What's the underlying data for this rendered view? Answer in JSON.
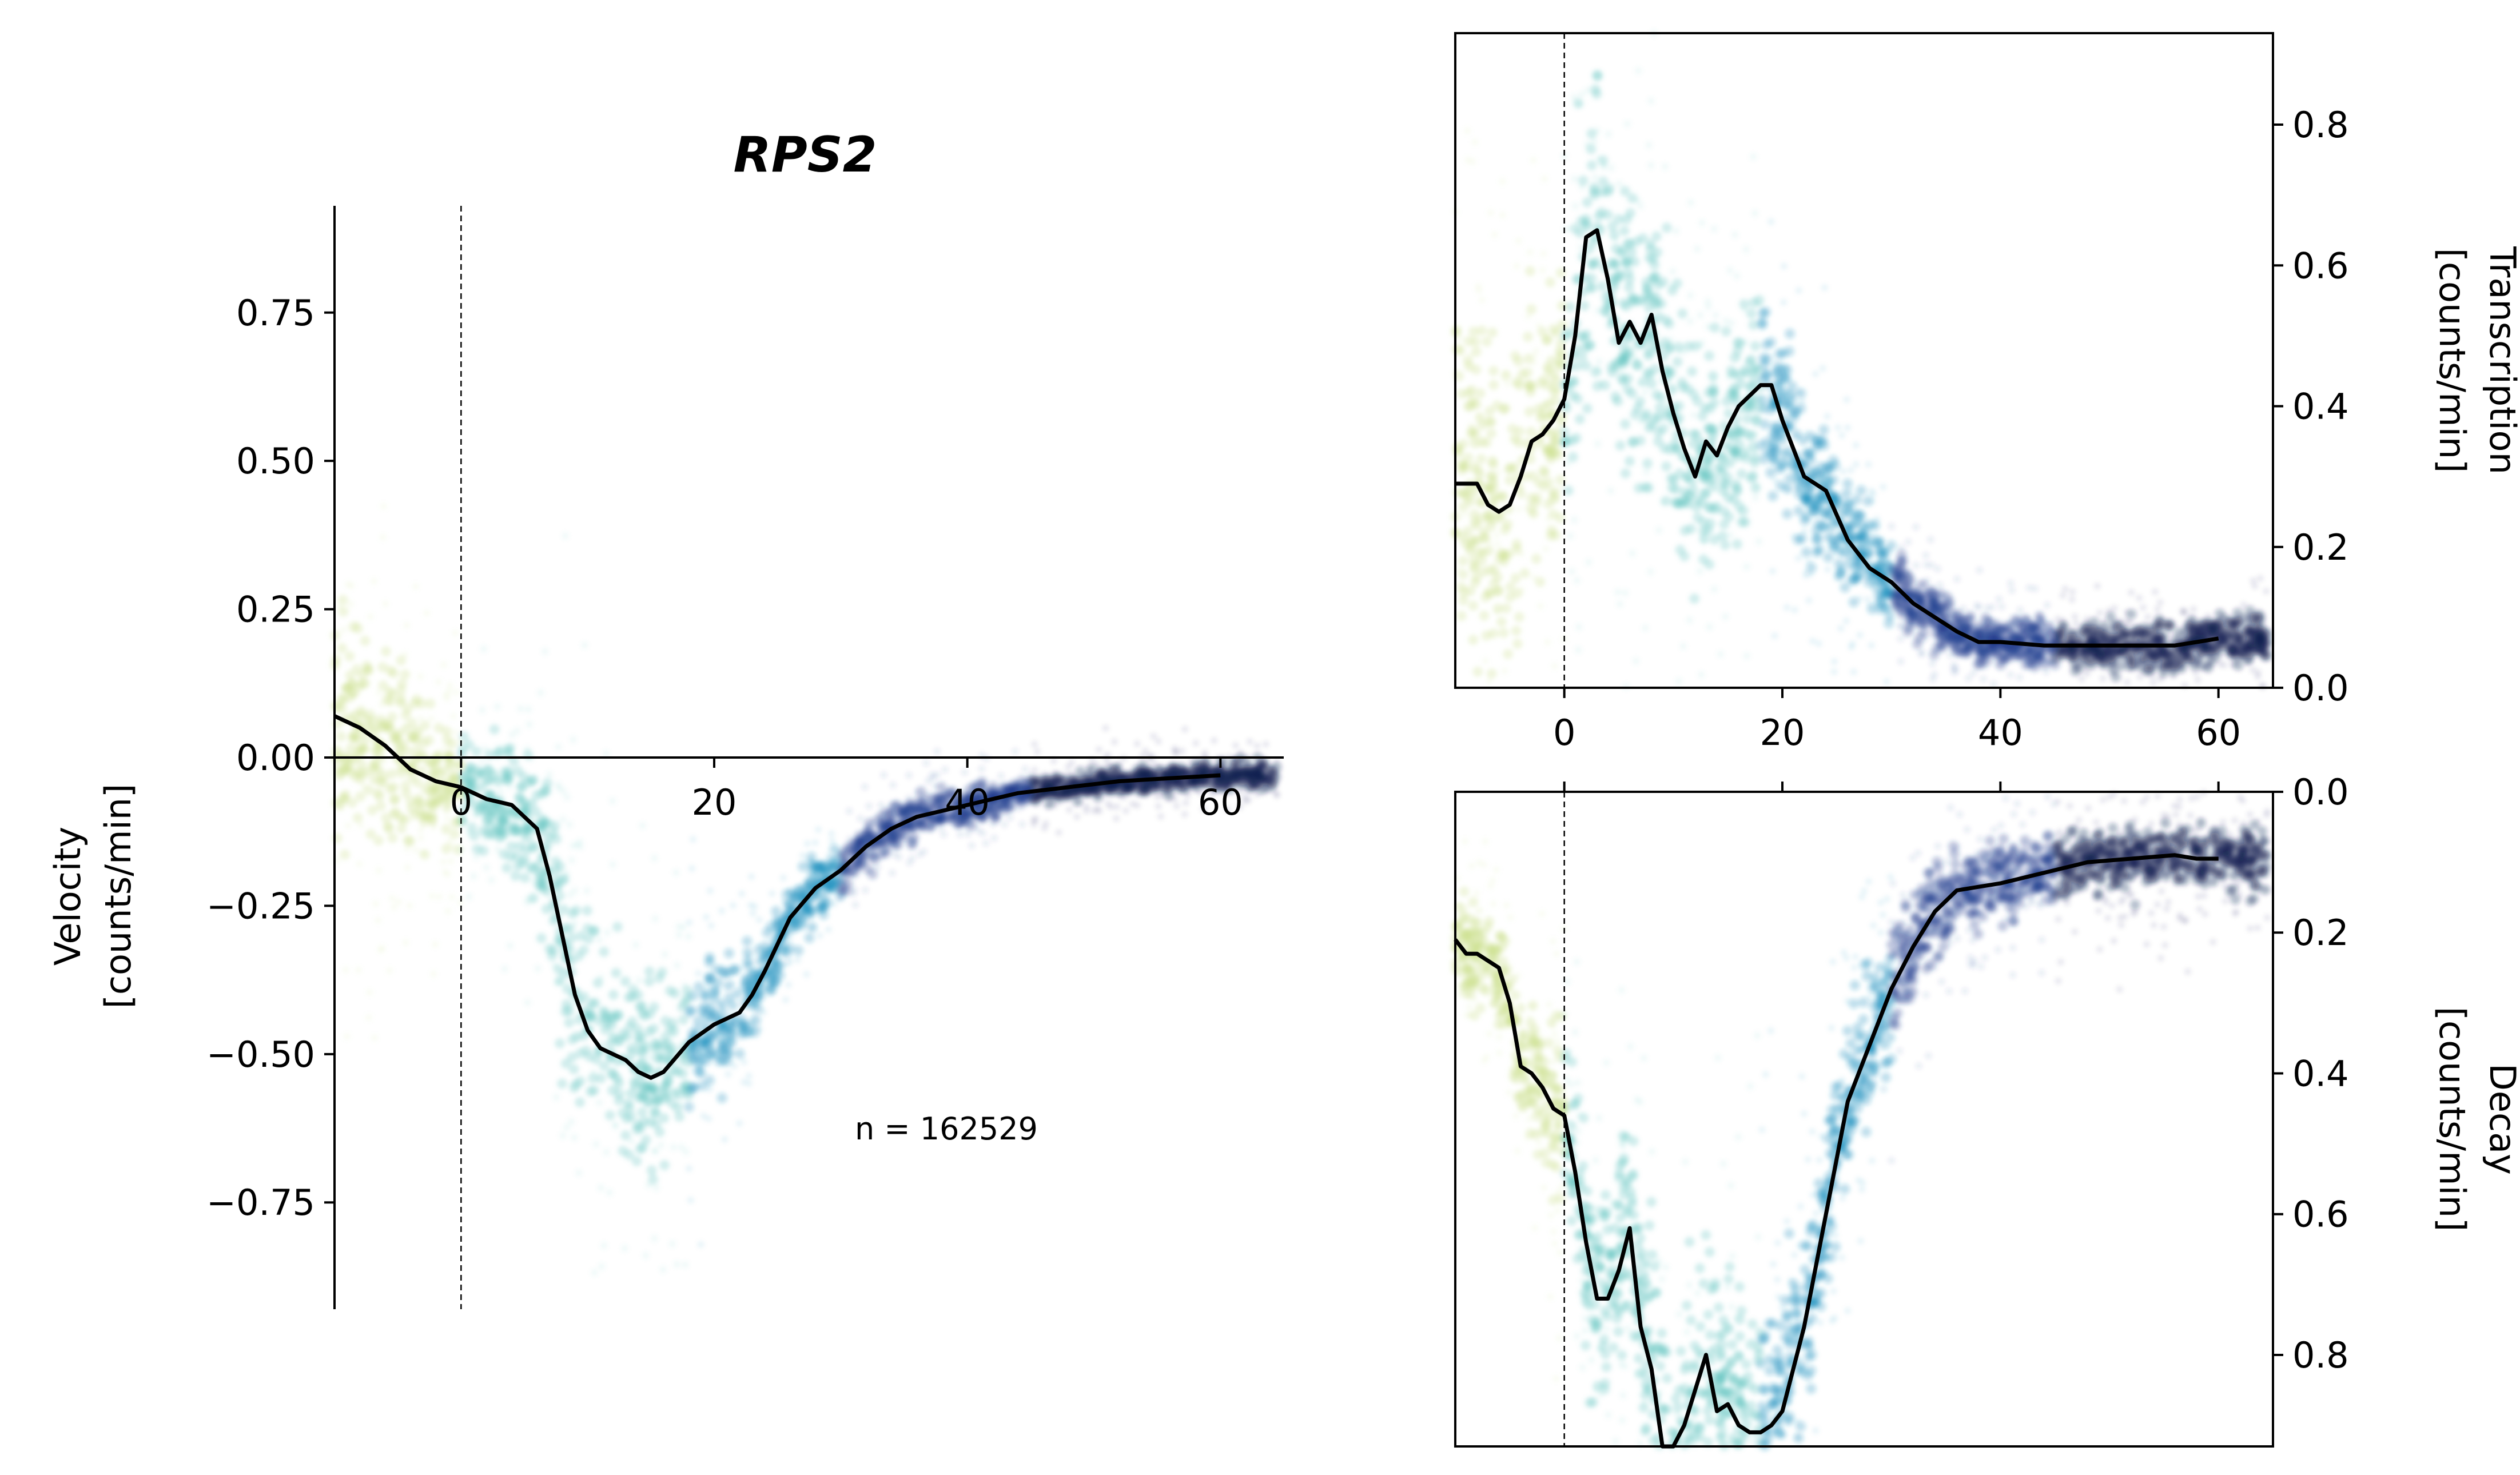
{
  "title": "RPS2",
  "annotation": "n = 162529",
  "colors": {
    "line": "#000000",
    "early": "#c8e08a",
    "mid": "#5cc3c0",
    "late1": "#1e8fc0",
    "late2": "#1b3a8c",
    "end": "#0d1b4f"
  },
  "chart_data": [
    {
      "id": "velocity",
      "type": "scatter",
      "ylabel": [
        "Velocity",
        "[counts/min]"
      ],
      "xlim": [
        -10,
        65
      ],
      "ylim": [
        -0.93,
        0.93
      ],
      "xticks": [
        0,
        20,
        40,
        60
      ],
      "xtick_labels": [
        "0",
        "20",
        "40",
        "60"
      ],
      "yticks": [
        -0.75,
        -0.5,
        -0.25,
        0.0,
        0.25,
        0.5,
        0.75
      ],
      "ytick_labels": [
        "−0.75",
        "−0.50",
        "−0.25",
        "0.00",
        "0.25",
        "0.50",
        "0.75"
      ],
      "vline_x": 0,
      "zero_line": true,
      "line": {
        "x": [
          -10,
          -8,
          -6,
          -4,
          -2,
          0,
          2,
          4,
          6,
          7,
          8,
          9,
          10,
          11,
          12,
          13,
          14,
          15,
          16,
          18,
          20,
          22,
          23,
          24,
          26,
          28,
          30,
          32,
          34,
          36,
          38,
          40,
          44,
          48,
          52,
          56,
          60
        ],
        "y": [
          0.07,
          0.05,
          0.02,
          -0.02,
          -0.04,
          -0.05,
          -0.07,
          -0.08,
          -0.12,
          -0.2,
          -0.3,
          -0.4,
          -0.46,
          -0.49,
          -0.5,
          -0.51,
          -0.53,
          -0.54,
          -0.53,
          -0.48,
          -0.45,
          -0.43,
          -0.4,
          -0.36,
          -0.27,
          -0.22,
          -0.19,
          -0.15,
          -0.12,
          -0.1,
          -0.09,
          -0.08,
          -0.06,
          -0.05,
          -0.04,
          -0.035,
          -0.03
        ]
      },
      "scatter_spread": [
        0.16,
        0.16,
        0.15,
        0.12,
        0.1,
        0.08,
        0.09,
        0.1,
        0.12,
        0.15,
        0.17,
        0.18,
        0.18,
        0.17,
        0.16,
        0.16,
        0.15,
        0.14,
        0.13,
        0.1,
        0.09,
        0.08,
        0.07,
        0.06,
        0.05,
        0.05,
        0.04,
        0.04,
        0.03,
        0.03,
        0.03,
        0.03,
        0.02,
        0.02,
        0.02,
        0.02,
        0.02
      ]
    },
    {
      "id": "transcription",
      "type": "scatter",
      "ylabel": [
        "Transcription",
        "[counts/min]"
      ],
      "xlim": [
        -10,
        65
      ],
      "ylim": [
        0.0,
        0.93
      ],
      "xticks": [
        0,
        20,
        40,
        60
      ],
      "xtick_labels": [
        "0",
        "20",
        "40",
        "60"
      ],
      "yticks": [
        0.0,
        0.2,
        0.4,
        0.6,
        0.8
      ],
      "ytick_labels": [
        "0.0",
        "0.2",
        "0.4",
        "0.6",
        "0.8"
      ],
      "vline_x": 0,
      "line": {
        "x": [
          -10,
          -8,
          -7,
          -6,
          -5,
          -4,
          -3,
          -2,
          -1,
          0,
          1,
          2,
          3,
          4,
          5,
          6,
          7,
          8,
          9,
          10,
          11,
          12,
          13,
          14,
          15,
          16,
          18,
          19,
          20,
          22,
          24,
          26,
          28,
          30,
          32,
          34,
          36,
          38,
          40,
          44,
          48,
          52,
          56,
          58,
          60
        ],
        "y": [
          0.29,
          0.29,
          0.26,
          0.25,
          0.26,
          0.3,
          0.35,
          0.36,
          0.38,
          0.41,
          0.5,
          0.64,
          0.65,
          0.58,
          0.49,
          0.52,
          0.49,
          0.53,
          0.45,
          0.39,
          0.34,
          0.3,
          0.35,
          0.33,
          0.37,
          0.4,
          0.43,
          0.43,
          0.38,
          0.3,
          0.28,
          0.21,
          0.17,
          0.15,
          0.12,
          0.1,
          0.08,
          0.065,
          0.065,
          0.06,
          0.06,
          0.06,
          0.06,
          0.065,
          0.07
        ]
      },
      "scatter_spread": [
        0.2,
        0.2,
        0.2,
        0.2,
        0.2,
        0.19,
        0.18,
        0.17,
        0.16,
        0.16,
        0.18,
        0.2,
        0.2,
        0.19,
        0.18,
        0.18,
        0.18,
        0.18,
        0.17,
        0.16,
        0.15,
        0.14,
        0.14,
        0.14,
        0.13,
        0.13,
        0.12,
        0.11,
        0.1,
        0.09,
        0.08,
        0.07,
        0.06,
        0.05,
        0.04,
        0.035,
        0.03,
        0.03,
        0.03,
        0.03,
        0.03,
        0.03,
        0.03,
        0.03,
        0.03
      ]
    },
    {
      "id": "decay",
      "type": "scatter",
      "ylabel": [
        "Decay",
        "[counts/min]"
      ],
      "xlim": [
        -10,
        65
      ],
      "ylim": [
        0.0,
        0.93
      ],
      "inverted_y": true,
      "xticks": [
        0,
        20,
        40,
        60
      ],
      "xtick_labels": [],
      "yticks": [
        0.0,
        0.2,
        0.4,
        0.6,
        0.8
      ],
      "ytick_labels": [
        "0.0",
        "0.2",
        "0.4",
        "0.6",
        "0.8"
      ],
      "vline_x": 0,
      "line": {
        "x": [
          -10,
          -9,
          -8,
          -6,
          -5,
          -4,
          -3,
          -2,
          -1,
          0,
          1,
          2,
          3,
          4,
          5,
          6,
          7,
          8,
          9,
          10,
          11,
          12,
          13,
          14,
          15,
          16,
          17,
          18,
          19,
          20,
          22,
          24,
          26,
          28,
          30,
          32,
          34,
          36,
          38,
          40,
          44,
          48,
          52,
          56,
          58,
          60
        ],
        "y": [
          0.21,
          0.23,
          0.23,
          0.25,
          0.3,
          0.39,
          0.4,
          0.42,
          0.45,
          0.46,
          0.54,
          0.64,
          0.72,
          0.72,
          0.68,
          0.62,
          0.76,
          0.82,
          0.93,
          0.97,
          0.9,
          0.85,
          0.8,
          0.88,
          0.87,
          0.9,
          0.91,
          0.91,
          0.9,
          0.88,
          0.76,
          0.6,
          0.44,
          0.36,
          0.28,
          0.22,
          0.17,
          0.14,
          0.135,
          0.13,
          0.115,
          0.1,
          0.095,
          0.09,
          0.095,
          0.095
        ]
      },
      "scatter_spread": [
        0.06,
        0.06,
        0.06,
        0.06,
        0.07,
        0.08,
        0.08,
        0.09,
        0.1,
        0.11,
        0.12,
        0.13,
        0.14,
        0.14,
        0.14,
        0.14,
        0.15,
        0.16,
        0.17,
        0.17,
        0.17,
        0.17,
        0.17,
        0.17,
        0.16,
        0.16,
        0.16,
        0.16,
        0.15,
        0.15,
        0.13,
        0.11,
        0.1,
        0.09,
        0.08,
        0.07,
        0.06,
        0.05,
        0.05,
        0.05,
        0.04,
        0.04,
        0.04,
        0.04,
        0.04,
        0.04
      ]
    }
  ]
}
